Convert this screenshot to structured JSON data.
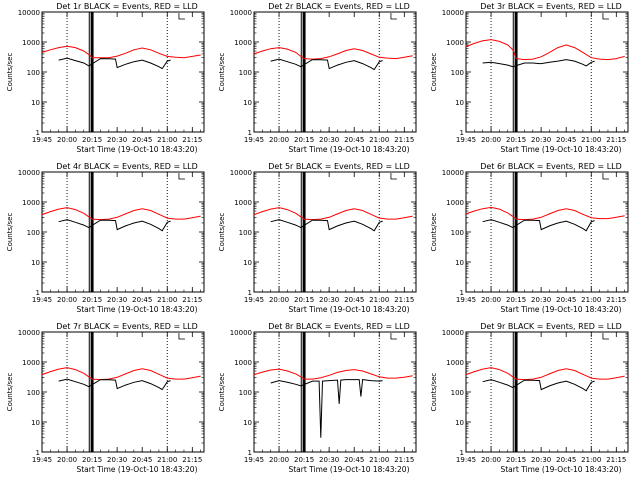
{
  "figure": {
    "x_label": "Start Time (19-Oct-10 18:43:20)",
    "y_label": "Counts/sec",
    "x_ticks": [
      "19:45",
      "20:00",
      "20:15",
      "20:30",
      "20:45",
      "21:00",
      "21:15"
    ],
    "y_ticks": [
      "1",
      "10",
      "100",
      "1000",
      "10000"
    ],
    "colors": {
      "events": "#000000",
      "lld": "#ff0000",
      "axes": "#000000"
    }
  },
  "chart_data": [
    {
      "type": "line",
      "title": "Det 1r BLACK = Events, RED = LLD",
      "xlim": [
        "19:45",
        "21:22"
      ],
      "ylim": [
        1,
        10000
      ],
      "yscale": "log",
      "series": [
        {
          "x": [
            "19:45",
            "19:50",
            "19:55",
            "20:00",
            "20:05",
            "20:10",
            "20:13",
            "20:15",
            "20:20",
            "20:25",
            "20:30",
            "20:35",
            "20:40",
            "20:45",
            "20:50",
            "20:55",
            "21:00",
            "21:05",
            "21:10",
            "21:15",
            "21:20"
          ],
          "values": [
            450,
            550,
            650,
            720,
            650,
            500,
            380,
            300,
            300,
            300,
            340,
            420,
            550,
            630,
            550,
            420,
            330,
            310,
            300,
            330,
            370
          ]
        },
        {
          "x": [
            "19:55",
            "20:00",
            "20:05",
            "20:10",
            "20:13",
            "20:20",
            "20:25",
            "20:29",
            "20:30",
            "20:35",
            "20:40",
            "20:45",
            "20:50",
            "20:55",
            "20:57",
            "21:00",
            "21:02"
          ],
          "values": [
            250,
            290,
            240,
            200,
            160,
            280,
            275,
            270,
            140,
            180,
            220,
            250,
            200,
            150,
            130,
            230,
            250
          ]
        }
      ]
    },
    {
      "type": "line",
      "title": "Det 2r BLACK = Events, RED = LLD",
      "xlim": [
        "19:45",
        "21:22"
      ],
      "ylim": [
        1,
        10000
      ],
      "yscale": "log",
      "series": [
        {
          "x": [
            "19:45",
            "19:50",
            "19:55",
            "20:00",
            "20:05",
            "20:10",
            "20:13",
            "20:15",
            "20:20",
            "20:25",
            "20:30",
            "20:35",
            "20:40",
            "20:45",
            "20:50",
            "20:55",
            "21:00",
            "21:05",
            "21:10",
            "21:15",
            "21:20"
          ],
          "values": [
            400,
            500,
            600,
            650,
            580,
            450,
            330,
            280,
            270,
            280,
            320,
            400,
            520,
            600,
            520,
            400,
            310,
            290,
            280,
            310,
            350
          ]
        },
        {
          "x": [
            "19:55",
            "20:00",
            "20:05",
            "20:10",
            "20:13",
            "20:20",
            "20:25",
            "20:29",
            "20:30",
            "20:35",
            "20:40",
            "20:45",
            "20:50",
            "20:55",
            "20:57",
            "21:00",
            "21:02"
          ],
          "values": [
            230,
            270,
            220,
            180,
            150,
            260,
            255,
            250,
            130,
            170,
            210,
            240,
            190,
            140,
            120,
            220,
            240
          ]
        }
      ]
    },
    {
      "type": "line",
      "title": "Det 3r BLACK = Events, RED = LLD",
      "xlim": [
        "19:45",
        "21:22"
      ],
      "ylim": [
        1,
        10000
      ],
      "yscale": "log",
      "series": [
        {
          "x": [
            "19:45",
            "19:50",
            "19:55",
            "20:00",
            "20:05",
            "20:10",
            "20:13",
            "20:15",
            "20:20",
            "20:25",
            "20:30",
            "20:35",
            "20:40",
            "20:45",
            "20:50",
            "20:55",
            "21:00",
            "21:05",
            "21:10",
            "21:15",
            "21:20"
          ],
          "values": [
            700,
            900,
            1100,
            1200,
            1050,
            800,
            550,
            280,
            260,
            270,
            320,
            450,
            650,
            800,
            650,
            450,
            300,
            270,
            260,
            280,
            330
          ]
        },
        {
          "x": [
            "19:55",
            "20:00",
            "20:05",
            "20:10",
            "20:13",
            "20:20",
            "20:25",
            "20:29",
            "20:30",
            "20:35",
            "20:40",
            "20:45",
            "20:50",
            "20:55",
            "20:57",
            "21:00",
            "21:02"
          ],
          "values": [
            200,
            210,
            190,
            170,
            150,
            200,
            200,
            190,
            190,
            210,
            230,
            260,
            230,
            180,
            160,
            210,
            230
          ]
        }
      ]
    },
    {
      "type": "line",
      "title": "Det 4r BLACK = Events, RED = LLD",
      "xlim": [
        "19:45",
        "21:22"
      ],
      "ylim": [
        1,
        10000
      ],
      "yscale": "log",
      "series": [
        {
          "x": [
            "19:45",
            "19:50",
            "19:55",
            "20:00",
            "20:05",
            "20:10",
            "20:13",
            "20:15",
            "20:20",
            "20:25",
            "20:30",
            "20:35",
            "20:40",
            "20:45",
            "20:50",
            "20:55",
            "21:00",
            "21:05",
            "21:10",
            "21:15",
            "21:20"
          ],
          "values": [
            380,
            480,
            580,
            650,
            560,
            420,
            320,
            270,
            260,
            270,
            310,
            400,
            520,
            600,
            520,
            390,
            290,
            270,
            270,
            300,
            340
          ]
        },
        {
          "x": [
            "19:55",
            "20:00",
            "20:05",
            "20:10",
            "20:13",
            "20:20",
            "20:25",
            "20:29",
            "20:30",
            "20:35",
            "20:40",
            "20:45",
            "20:50",
            "20:55",
            "20:57",
            "21:00",
            "21:02"
          ],
          "values": [
            220,
            260,
            210,
            170,
            140,
            250,
            245,
            240,
            120,
            160,
            200,
            230,
            180,
            130,
            110,
            210,
            230
          ]
        }
      ]
    },
    {
      "type": "line",
      "title": "Det 5r BLACK = Events, RED = LLD",
      "xlim": [
        "19:45",
        "21:22"
      ],
      "ylim": [
        1,
        10000
      ],
      "yscale": "log",
      "series": [
        {
          "x": [
            "19:45",
            "19:50",
            "19:55",
            "20:00",
            "20:05",
            "20:10",
            "20:13",
            "20:15",
            "20:20",
            "20:25",
            "20:30",
            "20:35",
            "20:40",
            "20:45",
            "20:50",
            "20:55",
            "21:00",
            "21:05",
            "21:10",
            "21:15",
            "21:20"
          ],
          "values": [
            380,
            480,
            580,
            650,
            560,
            420,
            320,
            270,
            260,
            270,
            310,
            400,
            520,
            600,
            520,
            390,
            290,
            270,
            270,
            300,
            340
          ]
        },
        {
          "x": [
            "19:55",
            "20:00",
            "20:05",
            "20:10",
            "20:13",
            "20:20",
            "20:25",
            "20:29",
            "20:30",
            "20:35",
            "20:40",
            "20:45",
            "20:50",
            "20:55",
            "20:57",
            "21:00",
            "21:02"
          ],
          "values": [
            220,
            260,
            210,
            170,
            140,
            250,
            245,
            240,
            120,
            160,
            200,
            230,
            180,
            130,
            110,
            210,
            230
          ]
        }
      ]
    },
    {
      "type": "line",
      "title": "Det 6r BLACK = Events, RED = LLD",
      "xlim": [
        "19:45",
        "21:22"
      ],
      "ylim": [
        1,
        10000
      ],
      "yscale": "log",
      "series": [
        {
          "x": [
            "19:45",
            "19:50",
            "19:55",
            "20:00",
            "20:05",
            "20:10",
            "20:13",
            "20:15",
            "20:20",
            "20:25",
            "20:30",
            "20:35",
            "20:40",
            "20:45",
            "20:50",
            "20:55",
            "21:00",
            "21:05",
            "21:10",
            "21:15",
            "21:20"
          ],
          "values": [
            400,
            500,
            600,
            660,
            580,
            430,
            330,
            270,
            260,
            270,
            310,
            400,
            520,
            600,
            520,
            390,
            300,
            280,
            280,
            310,
            350
          ]
        },
        {
          "x": [
            "19:55",
            "20:00",
            "20:05",
            "20:10",
            "20:13",
            "20:20",
            "20:25",
            "20:29",
            "20:30",
            "20:35",
            "20:40",
            "20:45",
            "20:50",
            "20:55",
            "20:57",
            "21:00",
            "21:02"
          ],
          "values": [
            220,
            260,
            210,
            170,
            140,
            250,
            245,
            240,
            120,
            160,
            200,
            230,
            180,
            130,
            110,
            220,
            240
          ]
        }
      ]
    },
    {
      "type": "line",
      "title": "Det 7r BLACK = Events, RED = LLD",
      "xlim": [
        "19:45",
        "21:22"
      ],
      "ylim": [
        1,
        10000
      ],
      "yscale": "log",
      "series": [
        {
          "x": [
            "19:45",
            "19:50",
            "19:55",
            "20:00",
            "20:05",
            "20:10",
            "20:13",
            "20:15",
            "20:20",
            "20:25",
            "20:30",
            "20:35",
            "20:40",
            "20:45",
            "20:50",
            "20:55",
            "21:00",
            "21:05",
            "21:10",
            "21:15",
            "21:20"
          ],
          "values": [
            380,
            480,
            580,
            650,
            560,
            420,
            320,
            270,
            260,
            270,
            310,
            400,
            520,
            600,
            520,
            390,
            290,
            270,
            270,
            300,
            340
          ]
        },
        {
          "x": [
            "19:55",
            "20:00",
            "20:05",
            "20:10",
            "20:13",
            "20:20",
            "20:25",
            "20:29",
            "20:30",
            "20:35",
            "20:40",
            "20:45",
            "20:50",
            "20:55",
            "20:57",
            "21:00",
            "21:02"
          ],
          "values": [
            230,
            270,
            220,
            180,
            150,
            260,
            255,
            250,
            130,
            170,
            210,
            240,
            190,
            140,
            120,
            220,
            240
          ]
        }
      ]
    },
    {
      "type": "line",
      "title": "Det 8r BLACK = Events, RED = LLD",
      "xlim": [
        "19:45",
        "21:22"
      ],
      "ylim": [
        1,
        10000
      ],
      "yscale": "log",
      "series": [
        {
          "x": [
            "19:45",
            "19:50",
            "19:55",
            "20:00",
            "20:05",
            "20:10",
            "20:13",
            "20:15",
            "20:20",
            "20:25",
            "20:30",
            "20:35",
            "20:40",
            "20:45",
            "20:50",
            "20:55",
            "21:00",
            "21:05",
            "21:10",
            "21:15",
            "21:20"
          ],
          "values": [
            380,
            460,
            540,
            580,
            500,
            400,
            320,
            270,
            270,
            300,
            360,
            450,
            520,
            560,
            500,
            400,
            320,
            290,
            290,
            310,
            350
          ]
        },
        {
          "x": [
            "19:55",
            "20:00",
            "20:05",
            "20:10",
            "20:13",
            "20:20",
            "20:24",
            "20:25",
            "20:26",
            "20:30",
            "20:35",
            "20:36",
            "20:37",
            "20:40",
            "20:45",
            "20:48",
            "20:49",
            "20:50",
            "20:55",
            "21:00",
            "21:02"
          ],
          "values": [
            200,
            240,
            210,
            180,
            160,
            230,
            230,
            3,
            230,
            240,
            250,
            40,
            250,
            260,
            260,
            260,
            70,
            260,
            240,
            230,
            240
          ]
        }
      ]
    },
    {
      "type": "line",
      "title": "Det 9r BLACK = Events, RED = LLD",
      "xlim": [
        "19:45",
        "21:22"
      ],
      "ylim": [
        1,
        10000
      ],
      "yscale": "log",
      "series": [
        {
          "x": [
            "19:45",
            "19:50",
            "19:55",
            "20:00",
            "20:05",
            "20:10",
            "20:13",
            "20:15",
            "20:20",
            "20:25",
            "20:30",
            "20:35",
            "20:40",
            "20:45",
            "20:50",
            "20:55",
            "21:00",
            "21:05",
            "21:10",
            "21:15",
            "21:20"
          ],
          "values": [
            380,
            480,
            580,
            650,
            560,
            420,
            320,
            270,
            260,
            270,
            310,
            400,
            520,
            600,
            520,
            390,
            290,
            270,
            270,
            300,
            340
          ]
        },
        {
          "x": [
            "19:55",
            "20:00",
            "20:05",
            "20:10",
            "20:13",
            "20:20",
            "20:25",
            "20:29",
            "20:30",
            "20:35",
            "20:40",
            "20:45",
            "20:50",
            "20:55",
            "20:57",
            "21:00",
            "21:02"
          ],
          "values": [
            220,
            260,
            210,
            170,
            140,
            250,
            245,
            240,
            120,
            160,
            200,
            230,
            180,
            130,
            110,
            210,
            230
          ]
        }
      ]
    }
  ]
}
